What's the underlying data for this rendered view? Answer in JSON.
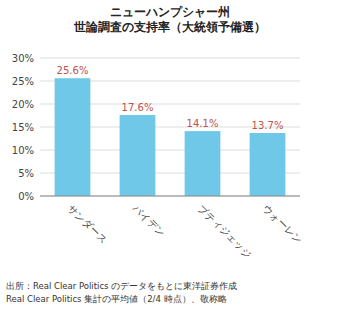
{
  "chart_data": {
    "type": "bar",
    "title": "ニューハンプシャー州\n世論調査の支持率（大統領予備選）",
    "categories": [
      "サンダース",
      "バイデン",
      "ブティジェッジ",
      "ウォーレン"
    ],
    "values": [
      25.6,
      17.6,
      14.1,
      13.7
    ],
    "value_labels": [
      "25.6%",
      "17.6%",
      "14.1%",
      "13.7%"
    ],
    "data_labels": true,
    "color": "#70C8E8",
    "ylim": [
      0,
      30
    ],
    "yticks": [
      {
        "value": 0,
        "label": "0%"
      },
      {
        "value": 5,
        "label": "5%"
      },
      {
        "value": 10,
        "label": "10%"
      },
      {
        "value": 15,
        "label": "15%"
      },
      {
        "value": 20,
        "label": "20%"
      },
      {
        "value": 25,
        "label": "25%"
      },
      {
        "value": 30,
        "label": "30%"
      }
    ],
    "grid": true,
    "annotations": [
      "出所：Real Clear Politics のデータをもとに東洋証券作成",
      "Real Clear Politics 集計の平均値（2/4 時点）、敬称略"
    ]
  }
}
